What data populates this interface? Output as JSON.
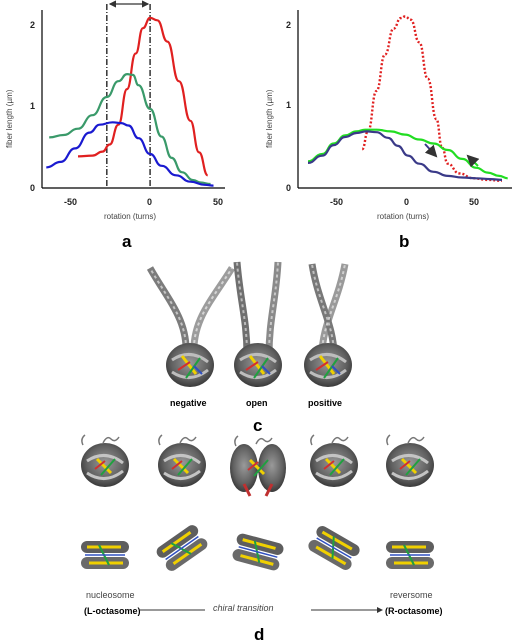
{
  "colors": {
    "red": "#e02020",
    "green_a": "#3a9a6a",
    "blue": "#1a1ad0",
    "green_b": "#22dd22",
    "navy": "#3a3a88",
    "axis": "#000000"
  },
  "panel_labels": {
    "a": "a",
    "b": "b",
    "c": "c",
    "d": "d"
  },
  "chart_data": [
    {
      "panel": "a",
      "type": "line",
      "xlabel": "rotation (turns)",
      "ylabel": "fiber length (µm)",
      "xticks": [
        "-50",
        "0",
        "50"
      ],
      "yticks": [
        "0",
        "1",
        "2"
      ],
      "xlim": [
        -75,
        52
      ],
      "ylim": [
        0,
        2.25
      ],
      "vlines": [
        -30,
        0
      ],
      "double_arrow": [
        -30,
        0
      ],
      "series": [
        {
          "color": "red",
          "points": [
            [
              -50,
              0.4
            ],
            [
              -40,
              0.41
            ],
            [
              -33,
              0.46
            ],
            [
              -28,
              0.55
            ],
            [
              -22,
              0.8
            ],
            [
              -16,
              1.25
            ],
            [
              -10,
              1.7
            ],
            [
              -5,
              2.02
            ],
            [
              0,
              2.15
            ],
            [
              5,
              2.12
            ],
            [
              12,
              1.85
            ],
            [
              20,
              1.35
            ],
            [
              28,
              0.85
            ],
            [
              34,
              0.45
            ],
            [
              40,
              0.16
            ]
          ]
        },
        {
          "color": "green_a",
          "points": [
            [
              -70,
              0.64
            ],
            [
              -60,
              0.67
            ],
            [
              -50,
              0.75
            ],
            [
              -40,
              0.92
            ],
            [
              -30,
              1.15
            ],
            [
              -22,
              1.35
            ],
            [
              -16,
              1.44
            ],
            [
              -12,
              1.43
            ],
            [
              -8,
              1.3
            ],
            [
              0,
              1.0
            ],
            [
              8,
              0.65
            ],
            [
              15,
              0.38
            ],
            [
              22,
              0.2
            ],
            [
              30,
              0.1
            ],
            [
              35,
              0.07
            ],
            [
              42,
              0.05
            ]
          ]
        },
        {
          "color": "blue",
          "points": [
            [
              -72,
              0.26
            ],
            [
              -62,
              0.33
            ],
            [
              -52,
              0.5
            ],
            [
              -42,
              0.7
            ],
            [
              -35,
              0.8
            ],
            [
              -26,
              0.83
            ],
            [
              -20,
              0.82
            ],
            [
              -15,
              0.79
            ],
            [
              -8,
              0.63
            ],
            [
              0,
              0.43
            ],
            [
              8,
              0.28
            ],
            [
              18,
              0.16
            ],
            [
              28,
              0.08
            ],
            [
              38,
              0.04
            ],
            [
              44,
              0.03
            ]
          ]
        }
      ]
    },
    {
      "panel": "b",
      "type": "line",
      "xlabel": "rotation (turns)",
      "ylabel": "fiber length (µm)",
      "xticks": [
        "-50",
        "0",
        "50"
      ],
      "yticks": [
        "0",
        "1",
        "2"
      ],
      "xlim": [
        -75,
        75
      ],
      "ylim": [
        0,
        2.2
      ],
      "series": [
        {
          "color": "red",
          "dotted": true,
          "points": [
            [
              -30,
              0.48
            ],
            [
              -26,
              0.7
            ],
            [
              -20,
              1.2
            ],
            [
              -14,
              1.65
            ],
            [
              -8,
              1.97
            ],
            [
              -3,
              2.1
            ],
            [
              0,
              2.12
            ],
            [
              4,
              2.08
            ],
            [
              10,
              1.8
            ],
            [
              16,
              1.35
            ],
            [
              22,
              0.85
            ],
            [
              26,
              0.5
            ],
            [
              30,
              0.3
            ],
            [
              38,
              0.18
            ],
            [
              48,
              0.12
            ],
            [
              58,
              0.1
            ],
            [
              68,
              0.09
            ]
          ]
        },
        {
          "color": "green_b",
          "points": [
            [
              -68,
              0.33
            ],
            [
              -58,
              0.42
            ],
            [
              -50,
              0.55
            ],
            [
              -42,
              0.65
            ],
            [
              -34,
              0.7
            ],
            [
              -28,
              0.72
            ],
            [
              -20,
              0.72
            ],
            [
              -10,
              0.7
            ],
            [
              0,
              0.66
            ],
            [
              10,
              0.6
            ],
            [
              20,
              0.55
            ],
            [
              30,
              0.47
            ],
            [
              40,
              0.36
            ],
            [
              50,
              0.25
            ],
            [
              58,
              0.19
            ],
            [
              66,
              0.15
            ],
            [
              72,
              0.12
            ]
          ]
        },
        {
          "color": "navy",
          "points": [
            [
              -68,
              0.31
            ],
            [
              -58,
              0.4
            ],
            [
              -50,
              0.53
            ],
            [
              -42,
              0.63
            ],
            [
              -34,
              0.68
            ],
            [
              -27,
              0.7
            ],
            [
              -20,
              0.69
            ],
            [
              -12,
              0.62
            ],
            [
              -5,
              0.52
            ],
            [
              2,
              0.4
            ],
            [
              10,
              0.3
            ],
            [
              20,
              0.2
            ],
            [
              30,
              0.15
            ],
            [
              40,
              0.13
            ],
            [
              50,
              0.12
            ],
            [
              60,
              0.11
            ],
            [
              68,
              0.1
            ]
          ]
        }
      ]
    }
  ],
  "panel_c": {
    "labels": [
      "negative",
      "open",
      "positive"
    ]
  },
  "panel_d": {
    "nucleosome": "nucleosome",
    "l_octasome": "(L-octasome)",
    "chiral_transition": "chiral transition",
    "reversome": "reversome",
    "r_octasome": "(R-octasome)"
  }
}
